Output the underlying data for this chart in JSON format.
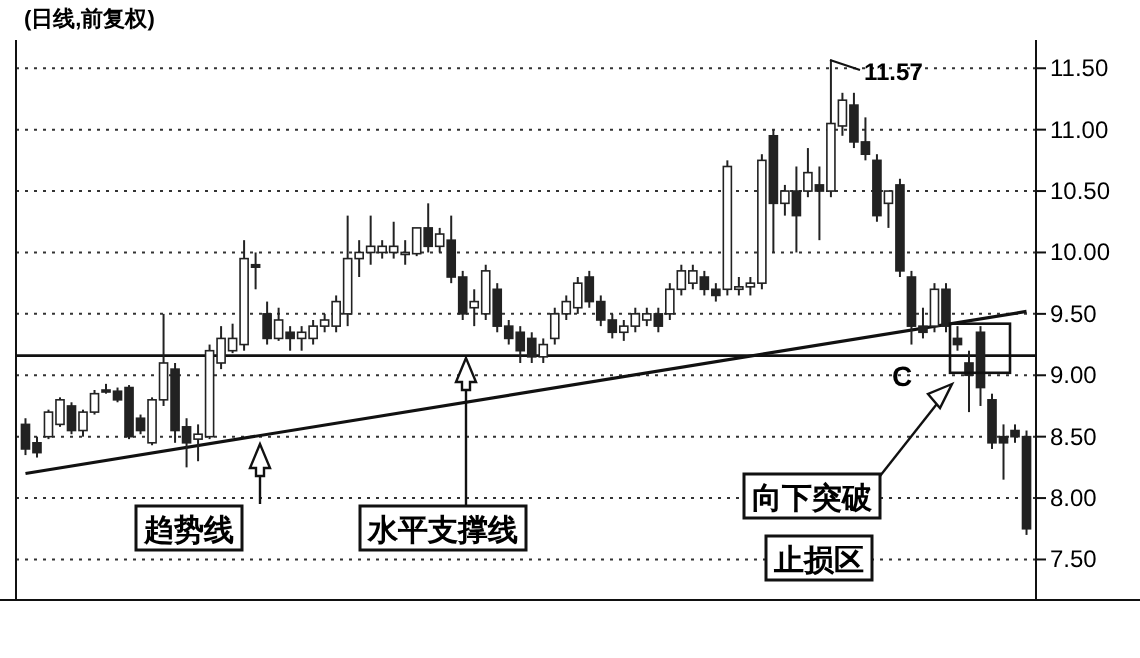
{
  "chart_data": {
    "type": "candlestick",
    "title": "(日线,前复权)",
    "categories": [
      null,
      null,
      null,
      null,
      null,
      null,
      null,
      null,
      null,
      null,
      null,
      null,
      null,
      null,
      null,
      null,
      null,
      null,
      null,
      null,
      null,
      null,
      null,
      null,
      null,
      null,
      null,
      null,
      null,
      null,
      null,
      null,
      null,
      null,
      null,
      null,
      null,
      null,
      null,
      null,
      null,
      null,
      null,
      null,
      null,
      null,
      null,
      null,
      null,
      null,
      null,
      null,
      null,
      null,
      null,
      null,
      null,
      null,
      null,
      null,
      null,
      null,
      null,
      null,
      null,
      null,
      null,
      null,
      null,
      null,
      null,
      null,
      null,
      null,
      null,
      null,
      null,
      null,
      null,
      null,
      null,
      null,
      null,
      null,
      null,
      null,
      null,
      null
    ],
    "ohlc": [
      [
        8.6,
        8.65,
        8.35,
        8.4
      ],
      [
        8.45,
        8.5,
        8.33,
        8.37
      ],
      [
        8.5,
        8.72,
        8.48,
        8.7
      ],
      [
        8.6,
        8.82,
        8.58,
        8.8
      ],
      [
        8.75,
        8.78,
        8.52,
        8.55
      ],
      [
        8.55,
        8.72,
        8.5,
        8.7
      ],
      [
        8.7,
        8.88,
        8.68,
        8.85
      ],
      [
        8.88,
        8.93,
        8.85,
        8.87
      ],
      [
        8.87,
        8.9,
        8.78,
        8.8
      ],
      [
        8.9,
        8.92,
        8.48,
        8.5
      ],
      [
        8.65,
        8.68,
        8.52,
        8.55
      ],
      [
        8.45,
        8.82,
        8.43,
        8.8
      ],
      [
        8.8,
        9.5,
        8.75,
        9.1
      ],
      [
        9.05,
        9.1,
        8.45,
        8.55
      ],
      [
        8.58,
        8.65,
        8.25,
        8.45
      ],
      [
        8.48,
        8.6,
        8.3,
        8.52
      ],
      [
        8.5,
        9.25,
        8.48,
        9.2
      ],
      [
        9.1,
        9.4,
        9.05,
        9.3
      ],
      [
        9.2,
        9.42,
        9.18,
        9.3
      ],
      [
        9.25,
        10.1,
        9.2,
        9.95
      ],
      [
        9.9,
        10.0,
        9.7,
        9.88
      ],
      [
        9.5,
        9.6,
        9.25,
        9.3
      ],
      [
        9.3,
        9.55,
        9.28,
        9.45
      ],
      [
        9.35,
        9.4,
        9.2,
        9.3
      ],
      [
        9.3,
        9.4,
        9.2,
        9.35
      ],
      [
        9.3,
        9.45,
        9.25,
        9.4
      ],
      [
        9.4,
        9.5,
        9.35,
        9.45
      ],
      [
        9.4,
        9.65,
        9.35,
        9.6
      ],
      [
        9.5,
        10.3,
        9.4,
        9.95
      ],
      [
        9.95,
        10.1,
        9.8,
        10.0
      ],
      [
        10.0,
        10.3,
        9.9,
        10.05
      ],
      [
        10.0,
        10.1,
        9.95,
        10.05
      ],
      [
        10.0,
        10.25,
        9.95,
        10.05
      ],
      [
        10.0,
        10.1,
        9.9,
        10.0
      ],
      [
        9.99,
        10.2,
        9.97,
        10.2
      ],
      [
        10.2,
        10.4,
        10.0,
        10.05
      ],
      [
        10.05,
        10.2,
        10.0,
        10.15
      ],
      [
        10.1,
        10.3,
        9.75,
        9.8
      ],
      [
        9.8,
        9.85,
        9.45,
        9.5
      ],
      [
        9.55,
        9.7,
        9.4,
        9.6
      ],
      [
        9.5,
        9.9,
        9.45,
        9.85
      ],
      [
        9.7,
        9.75,
        9.35,
        9.4
      ],
      [
        9.4,
        9.45,
        9.25,
        9.3
      ],
      [
        9.35,
        9.4,
        9.1,
        9.2
      ],
      [
        9.3,
        9.35,
        9.1,
        9.15
      ],
      [
        9.15,
        9.3,
        9.1,
        9.25
      ],
      [
        9.3,
        9.55,
        9.25,
        9.5
      ],
      [
        9.5,
        9.65,
        9.45,
        9.6
      ],
      [
        9.55,
        9.8,
        9.5,
        9.75
      ],
      [
        9.8,
        9.85,
        9.55,
        9.6
      ],
      [
        9.6,
        9.65,
        9.4,
        9.45
      ],
      [
        9.45,
        9.5,
        9.3,
        9.35
      ],
      [
        9.35,
        9.45,
        9.28,
        9.4
      ],
      [
        9.4,
        9.55,
        9.35,
        9.5
      ],
      [
        9.45,
        9.55,
        9.4,
        9.5
      ],
      [
        9.5,
        9.55,
        9.35,
        9.4
      ],
      [
        9.5,
        9.75,
        9.45,
        9.7
      ],
      [
        9.7,
        9.9,
        9.65,
        9.85
      ],
      [
        9.75,
        9.9,
        9.7,
        9.85
      ],
      [
        9.8,
        9.85,
        9.65,
        9.7
      ],
      [
        9.7,
        9.75,
        9.6,
        9.65
      ],
      [
        9.7,
        10.75,
        9.65,
        10.7
      ],
      [
        9.7,
        9.8,
        9.65,
        9.72
      ],
      [
        9.72,
        9.8,
        9.65,
        9.75
      ],
      [
        9.75,
        10.8,
        9.7,
        10.75
      ],
      [
        10.95,
        11.0,
        10.0,
        10.4
      ],
      [
        10.4,
        10.55,
        10.3,
        10.5
      ],
      [
        10.5,
        10.7,
        10.0,
        10.3
      ],
      [
        10.5,
        10.85,
        10.45,
        10.65
      ],
      [
        10.55,
        10.7,
        10.1,
        10.5
      ],
      [
        10.5,
        11.57,
        10.45,
        11.05
      ],
      [
        11.03,
        11.3,
        10.95,
        11.24
      ],
      [
        11.2,
        11.3,
        10.85,
        10.9
      ],
      [
        10.9,
        11.1,
        10.75,
        10.8
      ],
      [
        10.75,
        10.8,
        10.25,
        10.3
      ],
      [
        10.4,
        10.5,
        10.2,
        10.5
      ],
      [
        10.55,
        10.6,
        9.8,
        9.85
      ],
      [
        9.8,
        9.85,
        9.25,
        9.4
      ],
      [
        9.4,
        9.55,
        9.3,
        9.35
      ],
      [
        9.4,
        9.75,
        9.35,
        9.7
      ],
      [
        9.7,
        9.75,
        9.35,
        9.4
      ],
      [
        9.3,
        9.4,
        9.2,
        9.25
      ],
      [
        9.1,
        9.2,
        8.7,
        9.0
      ],
      [
        9.35,
        9.4,
        8.75,
        8.9
      ],
      [
        8.8,
        8.85,
        8.4,
        8.45
      ],
      [
        8.5,
        8.6,
        8.15,
        8.45
      ],
      [
        8.55,
        8.6,
        8.45,
        8.5
      ],
      [
        8.5,
        8.55,
        7.7,
        7.75
      ]
    ],
    "series": [
      {
        "type": "line",
        "color": "#111111",
        "values": [
          8.2,
          null,
          null,
          null,
          null,
          null,
          null,
          null,
          null,
          null,
          null,
          null,
          null,
          null,
          null,
          null,
          null,
          null,
          null,
          null,
          null,
          null,
          null,
          null,
          null,
          null,
          null,
          null,
          null,
          null,
          null,
          null,
          null,
          null,
          null,
          null,
          null,
          null,
          null,
          null,
          null,
          null,
          null,
          null,
          null,
          null,
          null,
          null,
          null,
          null,
          null,
          null,
          null,
          null,
          null,
          null,
          null,
          null,
          null,
          null,
          null,
          null,
          null,
          null,
          null,
          null,
          null,
          null,
          null,
          null,
          null,
          null,
          null,
          null,
          null,
          null,
          null,
          null,
          null,
          null,
          null,
          null,
          null,
          null,
          null,
          null,
          null,
          9.52
        ]
      }
    ],
    "ref_lines": [
      {
        "axis": "y",
        "value": 9.16,
        "color": "#111111"
      }
    ],
    "annotations": [
      "趋势线",
      "水平支撑线",
      "向下突破",
      "止损区",
      "C",
      "11.57"
    ],
    "ylim": [
      7.17,
      11.73
    ],
    "yticks": [
      {
        "value": 7.5,
        "label": "7.50"
      },
      {
        "value": 8,
        "label": "8.00"
      },
      {
        "value": 8.5,
        "label": "8.50"
      },
      {
        "value": 9,
        "label": "9.00"
      },
      {
        "value": 9.5,
        "label": "9.50"
      },
      {
        "value": 10,
        "label": "10.00"
      },
      {
        "value": 10.5,
        "label": "10.50"
      },
      {
        "value": 11,
        "label": "11.00"
      },
      {
        "value": 11.5,
        "label": "11.50"
      }
    ],
    "grid": "y",
    "tick_labels": "y"
  }
}
